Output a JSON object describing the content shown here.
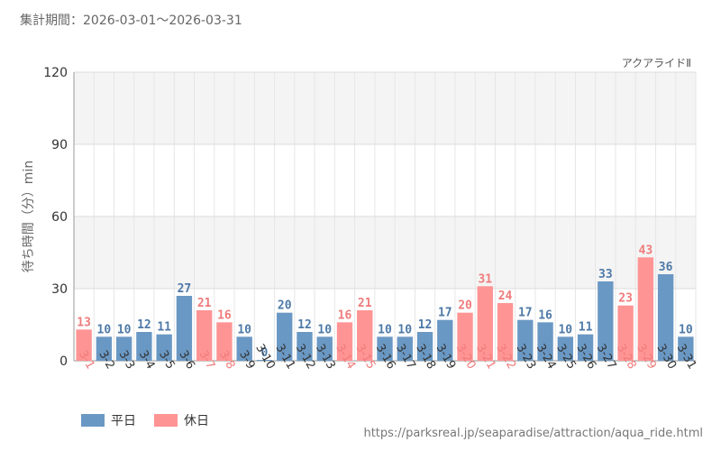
{
  "header": {
    "period": "集計期間：2026-03-01～2026-03-31",
    "attraction": "アクアライドⅡ"
  },
  "footer": {
    "source": "https://parksreal.jp/seaparadise/attraction/aqua_ride.html"
  },
  "legend": [
    {
      "label": "平日",
      "color": "#6a98c4"
    },
    {
      "label": "休日",
      "color": "#ff9494"
    }
  ],
  "colors": {
    "weekday": "#6a98c4",
    "holiday": "#ff9494",
    "weekday_label": "#4e79a7",
    "holiday_label": "#f07b7b"
  },
  "chart_data": {
    "type": "bar",
    "ylabel": "待ち時間（分）min",
    "ylim": [
      0,
      120
    ],
    "yticks": [
      0,
      30,
      60,
      90,
      120
    ],
    "grid": true,
    "legend_placement": "bottom-left",
    "categories": [
      "3-1",
      "3-2",
      "3-3",
      "3-4",
      "3-5",
      "3-6",
      "3-7",
      "3-8",
      "3-9",
      "3-10",
      "3-11",
      "3-12",
      "3-13",
      "3-14",
      "3-15",
      "3-16",
      "3-17",
      "3-18",
      "3-19",
      "3-20",
      "3-21",
      "3-22",
      "3-23",
      "3-24",
      "3-25",
      "3-26",
      "3-27",
      "3-28",
      "3-29",
      "3-30",
      "3-31"
    ],
    "values": [
      13,
      10,
      10,
      12,
      11,
      27,
      21,
      16,
      10,
      0,
      20,
      12,
      10,
      16,
      21,
      10,
      10,
      12,
      17,
      20,
      31,
      24,
      17,
      16,
      10,
      11,
      33,
      23,
      43,
      36,
      10
    ],
    "day_type": [
      "休日",
      "平日",
      "平日",
      "平日",
      "平日",
      "平日",
      "休日",
      "休日",
      "平日",
      "平日",
      "平日",
      "平日",
      "平日",
      "休日",
      "休日",
      "平日",
      "平日",
      "平日",
      "平日",
      "休日",
      "休日",
      "休日",
      "平日",
      "平日",
      "平日",
      "平日",
      "平日",
      "休日",
      "休日",
      "平日",
      "平日"
    ]
  }
}
